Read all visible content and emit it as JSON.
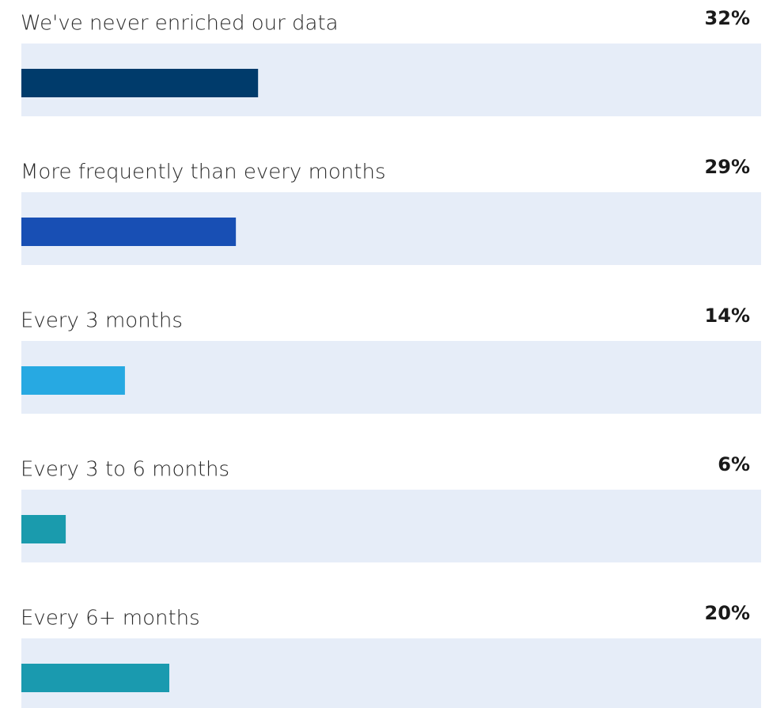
{
  "chart_data": {
    "type": "bar",
    "categories": [
      "We've never enriched our data",
      "More frequently than every months",
      "Every 3 months",
      "Every 3 to 6 months",
      "Every 6+ months"
    ],
    "values": [
      32,
      29,
      14,
      6,
      20
    ],
    "value_labels": [
      "32%",
      "29%",
      "14%",
      "6%",
      "20%"
    ],
    "colors": [
      "#003b6b",
      "#184fb4",
      "#27a9e2",
      "#1a9bad",
      "#1a9aaf"
    ],
    "xlim": [
      0,
      100
    ]
  }
}
